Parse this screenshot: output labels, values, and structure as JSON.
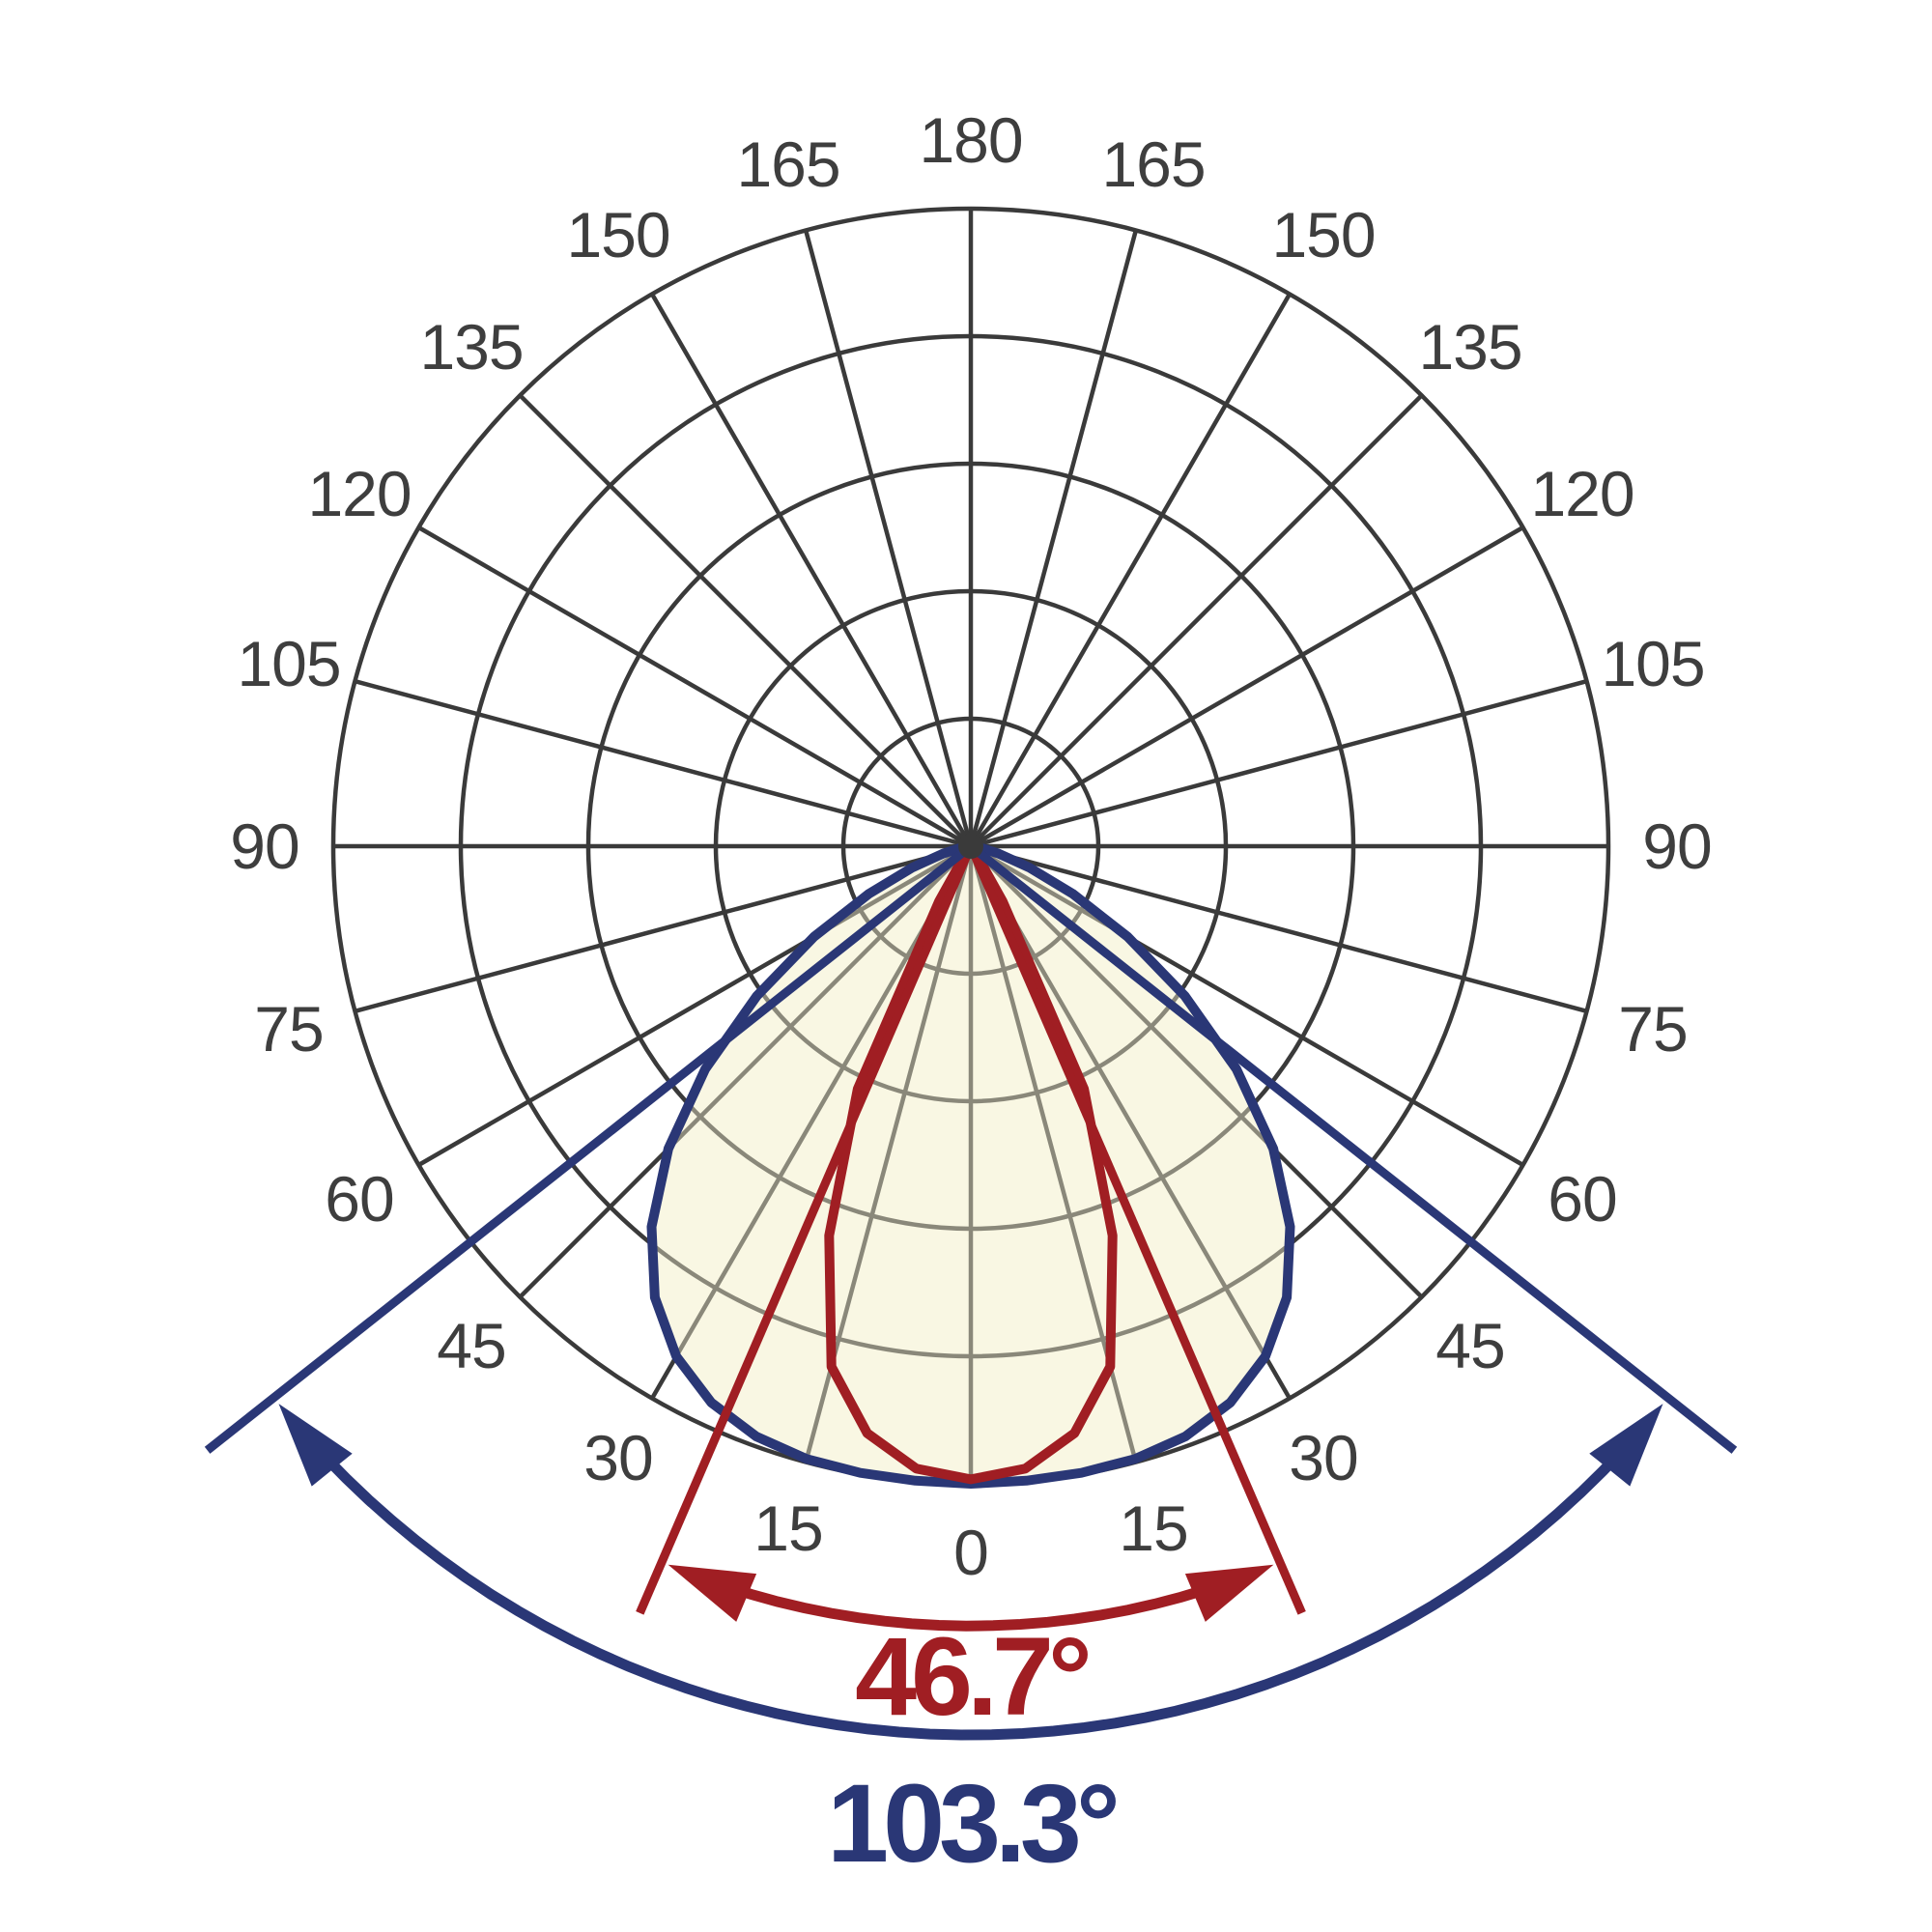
{
  "page": {
    "background": "#FFFFFF"
  },
  "chart_data": {
    "type": "polar",
    "kind": "photometric-light-distribution",
    "angle_unit": "deg",
    "angle_step_deg": 15,
    "angle_labels": [
      "0",
      "15",
      "30",
      "45",
      "60",
      "75",
      "90",
      "105",
      "120",
      "135",
      "150",
      "165",
      "180"
    ],
    "mirrored_labels": true,
    "rings_normalized": [
      0.2,
      0.4,
      0.6,
      0.8,
      1.0
    ],
    "grid_color": "#3A3A3A",
    "grid_color_inside_beam": "#8A887A",
    "label_color": "#3E3E3E",
    "fill_color": "#F9F7E3",
    "series": [
      {
        "name": "wide-beam-lobe",
        "color": "#2A3776",
        "beam_angle_deg": 103.3,
        "points_theta_r": [
          [
            0,
            1.0
          ],
          [
            5,
            0.999
          ],
          [
            10,
            0.998
          ],
          [
            15,
            0.995
          ],
          [
            20,
            0.985
          ],
          [
            25,
            0.963
          ],
          [
            30,
            0.924
          ],
          [
            35,
            0.864
          ],
          [
            40,
            0.779
          ],
          [
            45,
            0.671
          ],
          [
            50,
            0.544
          ],
          [
            55,
            0.41
          ],
          [
            60,
            0.284
          ],
          [
            65,
            0.176
          ],
          [
            70,
            0.097
          ],
          [
            75,
            0.046
          ],
          [
            80,
            0.019
          ],
          [
            85,
            0.007
          ],
          [
            90,
            0.002
          ]
        ]
      },
      {
        "name": "narrow-beam-lobe",
        "color": "#A01E23",
        "beam_angle_deg": 46.7,
        "points_theta_r": [
          [
            0,
            0.993
          ],
          [
            5,
            0.98
          ],
          [
            10,
            0.935
          ],
          [
            15,
            0.845
          ],
          [
            20,
            0.65
          ],
          [
            25,
            0.42
          ],
          [
            30,
            0.1
          ],
          [
            35,
            0.015
          ],
          [
            40,
            0.006
          ],
          [
            50,
            0.003
          ],
          [
            60,
            0.002
          ],
          [
            75,
            0.001
          ],
          [
            90,
            0.001
          ]
        ]
      }
    ],
    "annotations": [
      {
        "label": "46.7°",
        "beam_angle_deg": 46.7,
        "half_angle_deg": 23.35,
        "color": "#A01E23",
        "line_r_frac": 1.31,
        "arc_r_frac": 1.223
      },
      {
        "label": "103.3°",
        "beam_angle_deg": 103.3,
        "half_angle_deg": 51.65,
        "color": "#2A3776",
        "line_r_frac": 1.527,
        "arc_r_frac": 1.394
      }
    ]
  }
}
